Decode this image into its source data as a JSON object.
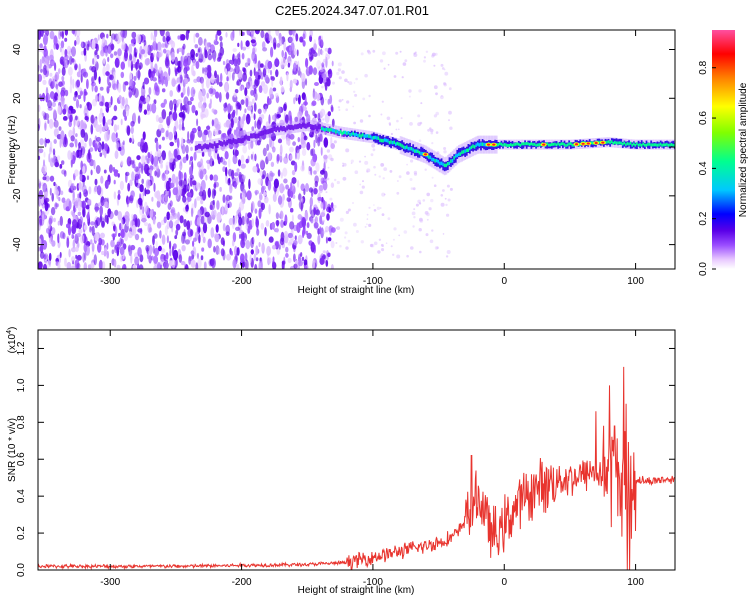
{
  "figure": {
    "title": "C2E5.2024.347.07.01.R01"
  },
  "chart_data": [
    {
      "type": "heatmap",
      "title": "C2E5.2024.347.07.01.R01",
      "xlabel": "Height of straight line (km)",
      "ylabel": "Frequency (Hz)",
      "xlim": [
        -355,
        130
      ],
      "ylim": [
        -50,
        48
      ],
      "x_ticks": [
        -300,
        -200,
        -100,
        0,
        100
      ],
      "x_tick_labels": [
        "-300",
        "-200",
        "-100",
        "0",
        "100"
      ],
      "y_ticks": [
        -40,
        -20,
        0,
        20,
        40
      ],
      "y_tick_labels": [
        "-40",
        "-20",
        "0",
        "20",
        "40"
      ],
      "colorbar": {
        "label": "Normalized spectral amplitude",
        "range": [
          0,
          0.95
        ],
        "ticks": [
          0.0,
          0.2,
          0.4,
          0.6,
          0.8
        ],
        "tick_labels": [
          "0.0",
          "0.2",
          "0.4",
          "0.6",
          "0.8"
        ],
        "colormap": [
          "#ffffff",
          "#e8c8ff",
          "#9a4dff",
          "#5a00e8",
          "#0000ff",
          "#00c8ff",
          "#00ff90",
          "#80ff00",
          "#ffff00",
          "#ff8000",
          "#ff0000",
          "#ff4fa0"
        ]
      },
      "ridge": [
        {
          "x": -230,
          "f": 0
        },
        {
          "x": -200,
          "f": 3
        },
        {
          "x": -175,
          "f": 7
        },
        {
          "x": -150,
          "f": 9
        },
        {
          "x": -125,
          "f": 6
        },
        {
          "x": -100,
          "f": 4
        },
        {
          "x": -80,
          "f": 1
        },
        {
          "x": -60,
          "f": -3
        },
        {
          "x": -45,
          "f": -8
        },
        {
          "x": -35,
          "f": -3
        },
        {
          "x": -20,
          "f": 1
        },
        {
          "x": 0,
          "f": 1
        },
        {
          "x": 50,
          "f": 1
        },
        {
          "x": 80,
          "f": 2
        },
        {
          "x": 100,
          "f": 1
        },
        {
          "x": 130,
          "f": 1
        }
      ],
      "grid": false
    },
    {
      "type": "line",
      "xlabel": "Height of straight line (km)",
      "ylabel": "SNR (10 * v/v)",
      "y_multiplier_label": "(x10",
      "y_multiplier_exp": "4",
      "y_multiplier_close": ")",
      "xlim": [
        -355,
        130
      ],
      "ylim": [
        0,
        1.3
      ],
      "x_ticks": [
        -300,
        -200,
        -100,
        0,
        100
      ],
      "x_tick_labels": [
        "-300",
        "-200",
        "-100",
        "0",
        "100"
      ],
      "y_ticks": [
        0.0,
        0.2,
        0.4,
        0.6,
        0.8,
        1.0,
        1.2
      ],
      "y_tick_labels": [
        "0.0",
        "0.2",
        "0.4",
        "0.6",
        "0.8",
        "1.0",
        "1.2"
      ],
      "color": "#e8342e",
      "series": [
        {
          "x": [
            -355,
            -300,
            -250,
            -200,
            -150,
            -120,
            -100,
            -80,
            -60,
            -45,
            -35,
            -28,
            -20,
            -15,
            -10,
            -5,
            0,
            10,
            20,
            30,
            40,
            50,
            60,
            70,
            78,
            82,
            86,
            90,
            95,
            100,
            110,
            120,
            130
          ],
          "y": [
            0.02,
            0.02,
            0.02,
            0.025,
            0.03,
            0.04,
            0.07,
            0.1,
            0.13,
            0.16,
            0.2,
            0.3,
            0.4,
            0.32,
            0.2,
            0.18,
            0.25,
            0.35,
            0.42,
            0.46,
            0.49,
            0.5,
            0.51,
            0.53,
            0.52,
            0.55,
            0.5,
            0.45,
            0.5,
            0.49,
            0.48,
            0.49,
            0.49
          ]
        }
      ],
      "grid": false
    }
  ]
}
